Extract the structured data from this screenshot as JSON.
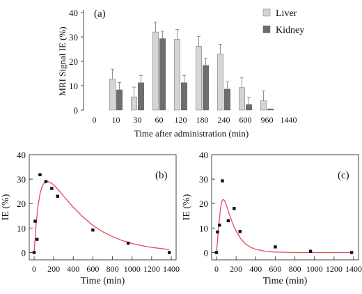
{
  "chart_data": [
    {
      "panel": "(a)",
      "type": "bar",
      "xlabel": "Time after administration (min)",
      "ylabel": "MRI Signal IE (%)",
      "ylim": [
        0,
        40
      ],
      "yticks": [
        0,
        10,
        20,
        30,
        40
      ],
      "categories": [
        "0",
        "10",
        "30",
        "60",
        "120",
        "180",
        "240",
        "600",
        "960",
        "1440"
      ],
      "legend_position": "top-right",
      "series": [
        {
          "name": "Liver",
          "color": "#d4d6d4",
          "values": [
            null,
            12.8,
            5.4,
            32.0,
            29.0,
            26.2,
            23.0,
            9.2,
            3.8,
            null
          ],
          "errors": [
            null,
            4.0,
            4.0,
            4.0,
            4.0,
            4.0,
            4.0,
            4.0,
            4.0,
            null
          ]
        },
        {
          "name": "Kidney",
          "color": "#6b6f71",
          "values": [
            null,
            8.3,
            11.2,
            29.3,
            11.2,
            18.3,
            8.6,
            2.3,
            0.5,
            null
          ],
          "errors": [
            null,
            3.0,
            3.0,
            3.0,
            3.0,
            3.0,
            3.0,
            3.0,
            0.0,
            null
          ]
        }
      ]
    },
    {
      "panel": "(b)",
      "type": "scatter",
      "xlabel": "Time (min)",
      "ylabel": "IE (%)",
      "xlim": [
        -50,
        1450
      ],
      "ylim": [
        -3,
        40
      ],
      "xticks": [
        0,
        200,
        400,
        600,
        800,
        1000,
        1200,
        1400
      ],
      "yticks": [
        0,
        10,
        20,
        30,
        40
      ],
      "points": {
        "x": [
          0,
          10,
          30,
          60,
          120,
          180,
          240,
          600,
          960,
          1380
        ],
        "y": [
          0,
          12.8,
          5.4,
          31.8,
          29.0,
          26.2,
          23.0,
          9.2,
          3.8,
          0
        ]
      },
      "fit": {
        "color": "#e8485a",
        "x": [
          0,
          20,
          40,
          60,
          80,
          100,
          120,
          140,
          160,
          180,
          200,
          240,
          280,
          320,
          360,
          400,
          500,
          600,
          700,
          800,
          900,
          1000,
          1100,
          1200,
          1300,
          1380
        ],
        "y": [
          0,
          11.4,
          19.2,
          24.0,
          26.9,
          28.3,
          28.9,
          29.0,
          28.7,
          28.2,
          27.6,
          25.9,
          24.1,
          22.2,
          20.3,
          18.5,
          14.5,
          11.1,
          8.5,
          6.5,
          4.9,
          3.7,
          2.8,
          2.1,
          1.6,
          1.2
        ]
      }
    },
    {
      "panel": "(c)",
      "type": "scatter",
      "xlabel": "Time (min)",
      "ylabel": "IE (%)",
      "xlim": [
        -50,
        1450
      ],
      "ylim": [
        -3,
        40
      ],
      "xticks": [
        0,
        200,
        400,
        600,
        800,
        1000,
        1200,
        1400
      ],
      "yticks": [
        0,
        10,
        20,
        30,
        40
      ],
      "points": {
        "x": [
          0,
          10,
          30,
          60,
          120,
          180,
          240,
          600,
          960,
          1380
        ],
        "y": [
          0,
          8.4,
          11.2,
          29.3,
          13.0,
          18.0,
          8.6,
          2.3,
          0.5,
          0
        ]
      },
      "fit": {
        "color": "#e8485a",
        "x": [
          0,
          10,
          20,
          30,
          40,
          50,
          60,
          70,
          80,
          90,
          100,
          120,
          140,
          160,
          180,
          200,
          250,
          300,
          350,
          400,
          500,
          600,
          700,
          800,
          1000,
          1200,
          1380
        ],
        "y": [
          0,
          4.6,
          9.6,
          14.2,
          17.8,
          20.2,
          21.4,
          21.7,
          21.3,
          20.5,
          19.4,
          17.0,
          14.6,
          12.4,
          10.4,
          8.7,
          5.5,
          3.4,
          2.1,
          1.3,
          0.5,
          0.2,
          0.1,
          0,
          0,
          0,
          0
        ]
      }
    }
  ]
}
